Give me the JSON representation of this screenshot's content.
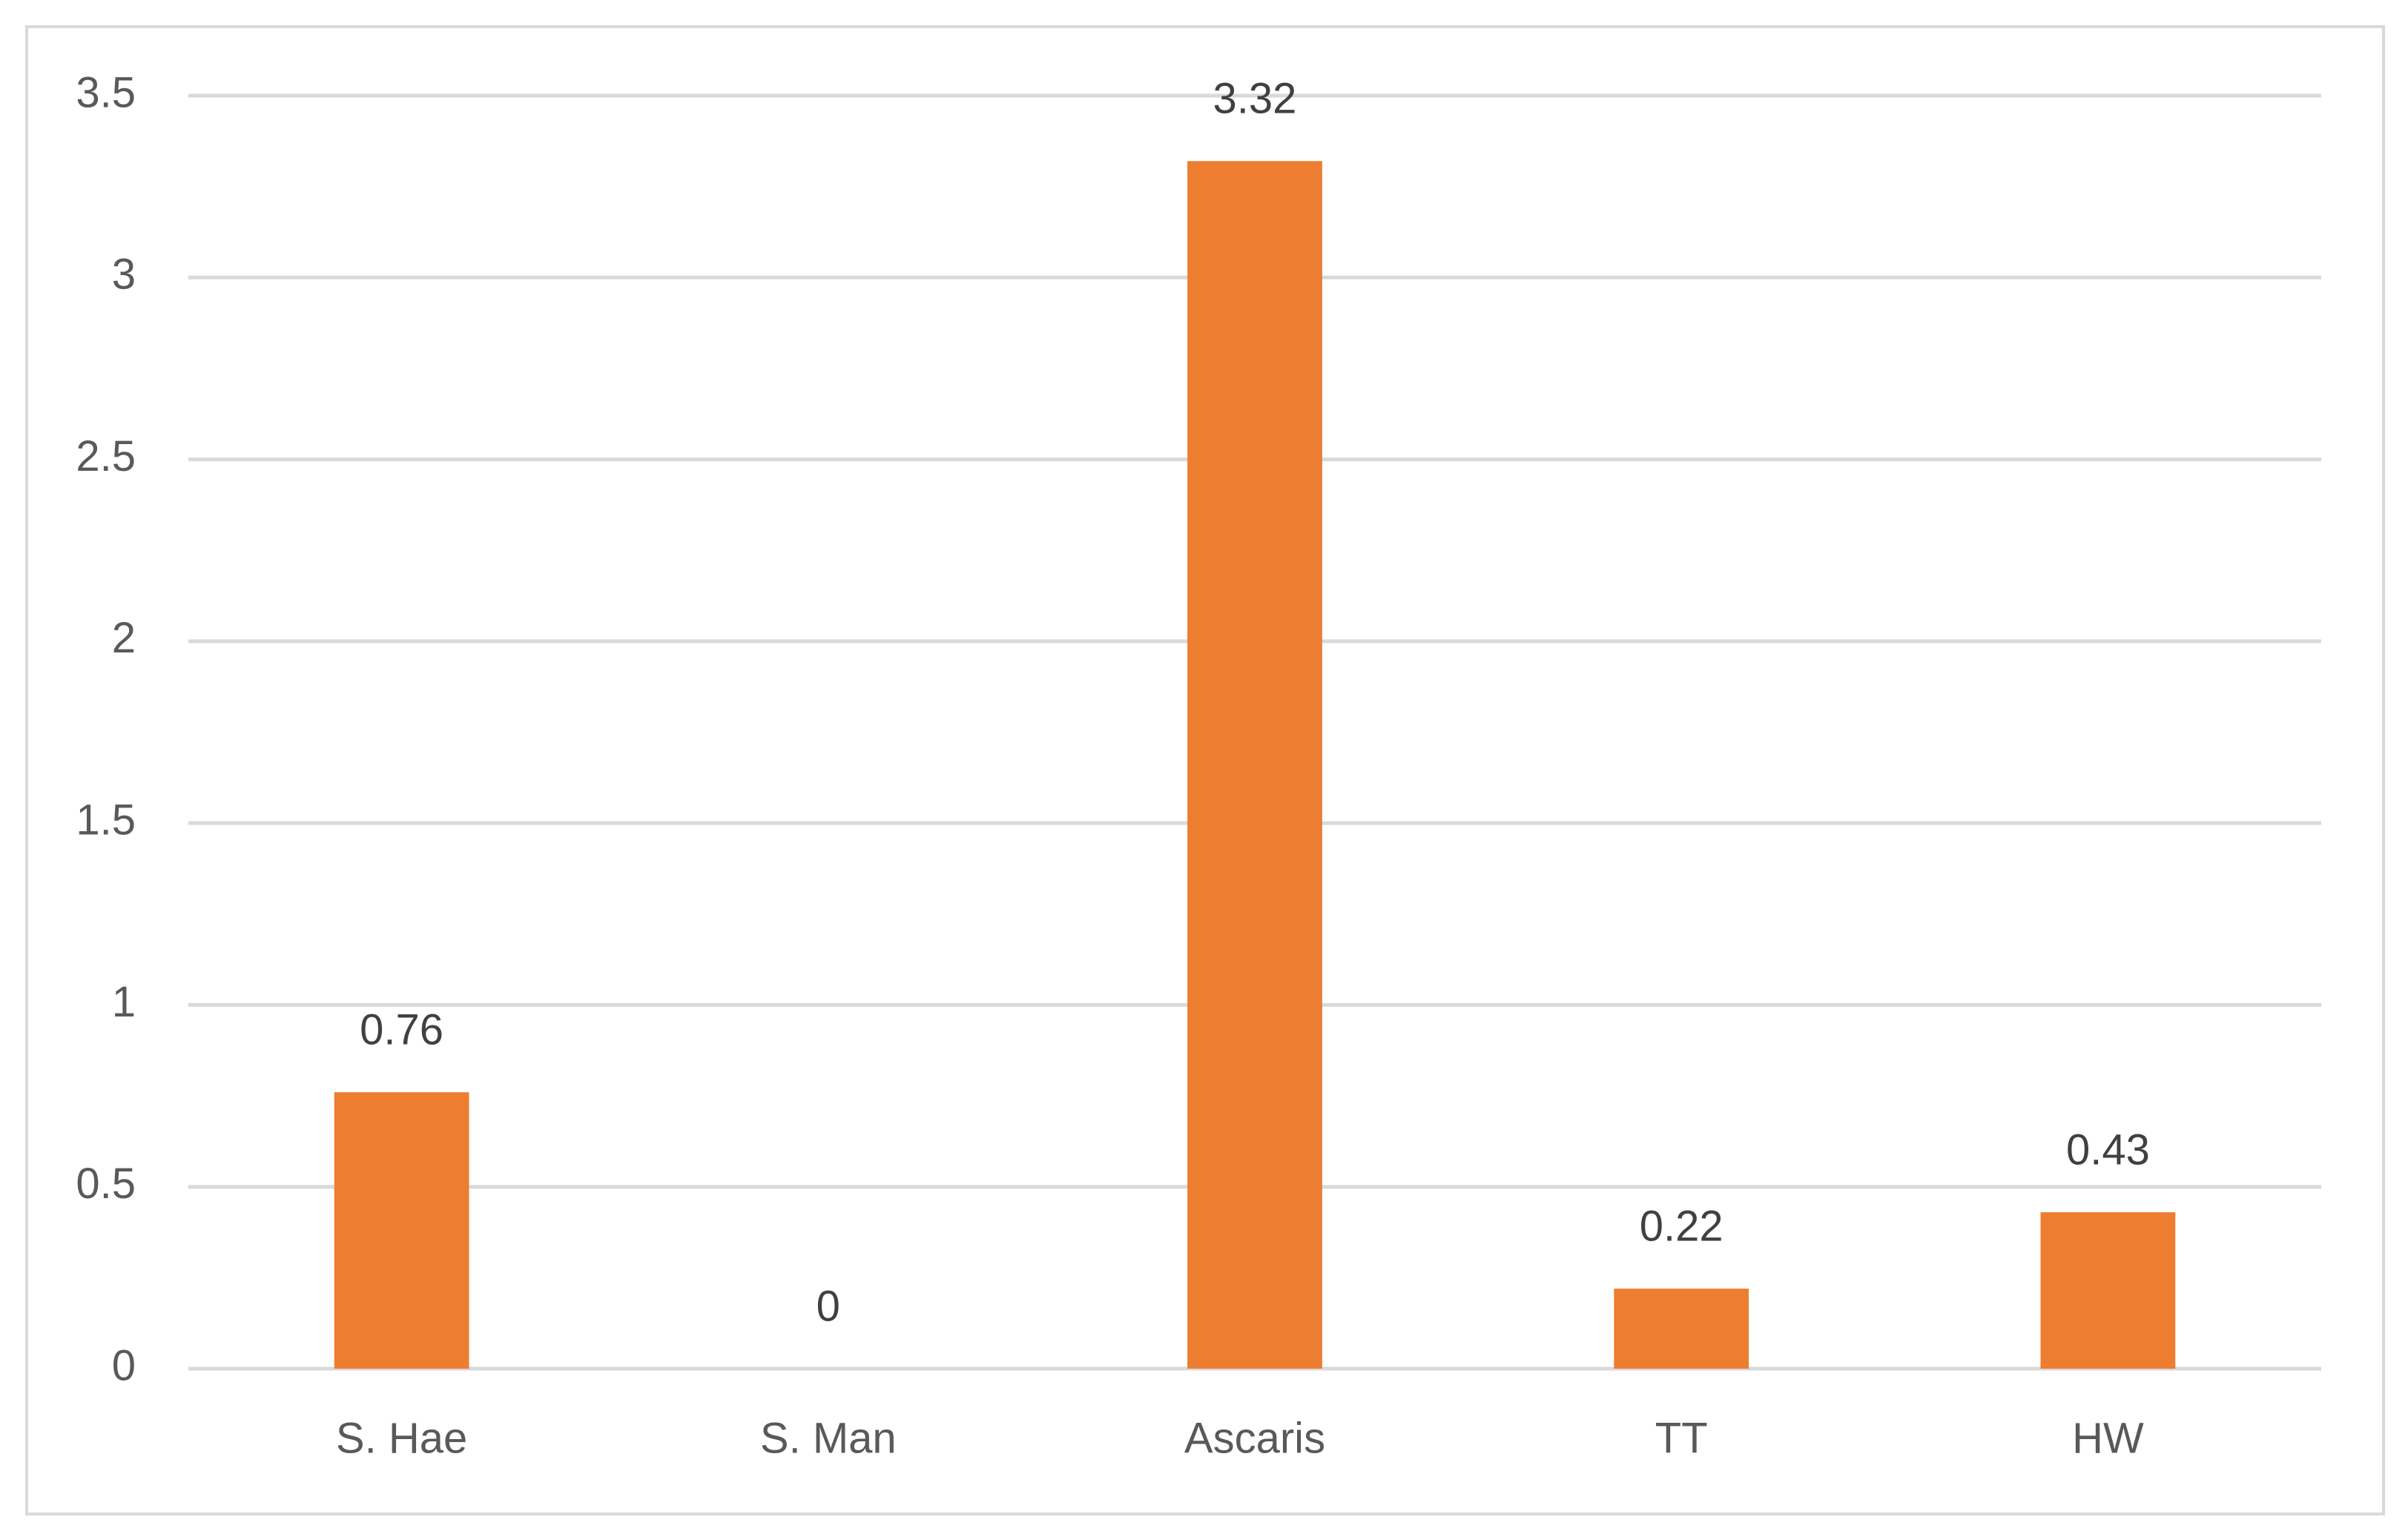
{
  "chart_data": {
    "type": "bar",
    "categories": [
      "S. Hae",
      "S. Man",
      "Ascaris",
      "TT",
      "HW"
    ],
    "values": [
      0.76,
      0,
      3.32,
      0.22,
      0.43
    ],
    "color": "#ED7D31",
    "ylim": [
      0,
      3.5
    ],
    "yticks": [
      0,
      0.5,
      1,
      1.5,
      2,
      2.5,
      3,
      3.5
    ],
    "grid": true
  }
}
